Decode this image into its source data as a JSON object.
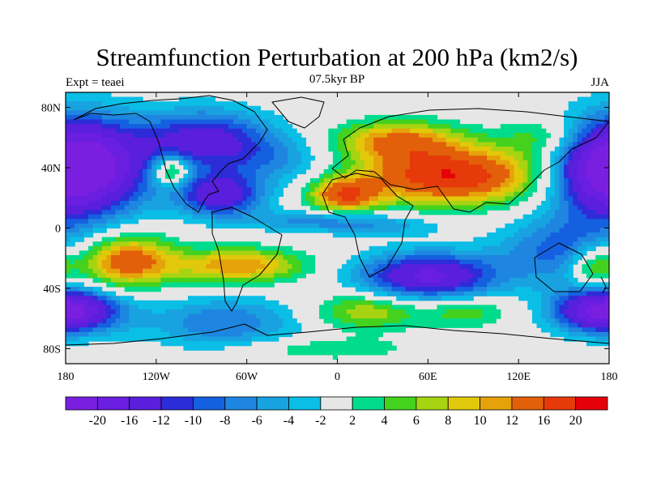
{
  "chart_data": {
    "type": "heatmap",
    "title": "Streamfunction Perturbation at 200 hPa (km2/s)",
    "left_label": "Expt = teaei",
    "center_label": "07.5kyr BP",
    "right_label": "JJA",
    "x_ticks": [
      {
        "value": -180,
        "label": "180"
      },
      {
        "value": -120,
        "label": "120W"
      },
      {
        "value": -60,
        "label": "60W"
      },
      {
        "value": 0,
        "label": "0"
      },
      {
        "value": 60,
        "label": "60E"
      },
      {
        "value": 120,
        "label": "120E"
      },
      {
        "value": 180,
        "label": "180"
      }
    ],
    "y_ticks": [
      {
        "value": 80,
        "label": "80N"
      },
      {
        "value": 40,
        "label": "40N"
      },
      {
        "value": 0,
        "label": "0"
      },
      {
        "value": -40,
        "label": "40S"
      },
      {
        "value": -80,
        "label": "80S"
      }
    ],
    "xlim": [
      -180,
      180
    ],
    "ylim": [
      -90,
      90
    ],
    "colorbar": {
      "levels": [
        "-20",
        "-16",
        "-12",
        "-10",
        "-8",
        "-6",
        "-4",
        "-2",
        "2",
        "4",
        "6",
        "8",
        "10",
        "12",
        "16",
        "20"
      ],
      "level_values": [
        -20,
        -16,
        -12,
        -10,
        -8,
        -6,
        -4,
        -2,
        2,
        4,
        6,
        8,
        10,
        12,
        16,
        20
      ],
      "colors": [
        "#7A1FE0",
        "#6A1EE0",
        "#5A1FDC",
        "#2C2CD8",
        "#1560E0",
        "#1E86E0",
        "#18A2E0",
        "#0ABEE6",
        "#E6E6E6",
        "#00DC8C",
        "#44D21E",
        "#A6D412",
        "#E2C80A",
        "#E6A20A",
        "#E2600A",
        "#E63A0A",
        "#E6000A"
      ]
    },
    "features": [
      {
        "lon": -160,
        "lat": 40,
        "amp": -16,
        "slon": 28,
        "slat": 22
      },
      {
        "lon": 175,
        "lat": 40,
        "amp": -16,
        "slon": 25,
        "slat": 22
      },
      {
        "lon": -88,
        "lat": 58,
        "amp": -14,
        "slon": 30,
        "slat": 14
      },
      {
        "lon": -78,
        "lat": 22,
        "amp": -15,
        "slon": 20,
        "slat": 10
      },
      {
        "lon": -110,
        "lat": 38,
        "amp": 12,
        "slon": 9,
        "slat": 7
      },
      {
        "lon": -40,
        "lat": 45,
        "amp": -5,
        "slon": 25,
        "slat": 12
      },
      {
        "lon": 75,
        "lat": 35,
        "amp": 20,
        "slon": 40,
        "slat": 13
      },
      {
        "lon": 40,
        "lat": 58,
        "amp": 12,
        "slon": 28,
        "slat": 9
      },
      {
        "lon": 5,
        "lat": 22,
        "amp": 15,
        "slon": 16,
        "slat": 8
      },
      {
        "lon": -140,
        "lat": -22,
        "amp": 15,
        "slon": 22,
        "slat": 12
      },
      {
        "lon": -65,
        "lat": -25,
        "amp": 12,
        "slon": 30,
        "slat": 8
      },
      {
        "lon": 60,
        "lat": -32,
        "amp": -17,
        "slon": 32,
        "slat": 11
      },
      {
        "lon": 150,
        "lat": -15,
        "amp": -9,
        "slon": 30,
        "slat": 16
      },
      {
        "lon": -175,
        "lat": -55,
        "amp": -12,
        "slon": 25,
        "slat": 10
      },
      {
        "lon": 175,
        "lat": -55,
        "amp": -12,
        "slon": 22,
        "slat": 10
      },
      {
        "lon": 20,
        "lat": -55,
        "amp": 8,
        "slon": 25,
        "slat": 9
      },
      {
        "lon": 85,
        "lat": -55,
        "amp": 6,
        "slon": 20,
        "slat": 7
      },
      {
        "lon": -75,
        "lat": -63,
        "amp": -8,
        "slon": 35,
        "slat": 12
      },
      {
        "lon": -20,
        "lat": 5,
        "amp": -6,
        "slon": 30,
        "slat": 5
      },
      {
        "lon": 30,
        "lat": 2,
        "amp": -5,
        "slon": 30,
        "slat": 5
      },
      {
        "lon": 170,
        "lat": -25,
        "amp": 10,
        "slon": 12,
        "slat": 10
      },
      {
        "lon": 140,
        "lat": 60,
        "amp": 6,
        "slon": 20,
        "slat": 10
      },
      {
        "lon": -10,
        "lat": -80,
        "amp": 4,
        "slon": 40,
        "slat": 5
      }
    ]
  }
}
